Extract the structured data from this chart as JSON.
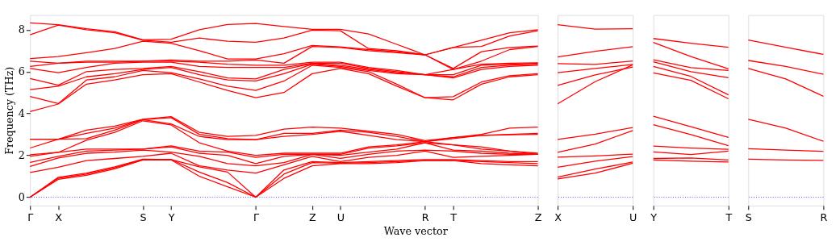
{
  "chart_data": [
    {
      "type": "line",
      "ylabel": "Frequency (THz)",
      "xlabel": "Wave vector",
      "ylim": [
        -0.4,
        8.7
      ],
      "yticks": [
        0,
        2,
        4,
        6,
        8
      ],
      "grid": false,
      "marker": "none",
      "line_style": "solid",
      "categories": [
        "Γ",
        "X",
        null,
        null,
        "S",
        "Y",
        null,
        null,
        "Γ",
        null,
        "Z",
        "U",
        null,
        null,
        "R",
        "T",
        null,
        null,
        "Z"
      ],
      "ref_lines": [
        {
          "axis": "y",
          "value": 0,
          "label": null,
          "color": "#0000ff",
          "line_style": "dotted"
        }
      ],
      "series": [
        {
          "color": "#ff0000",
          "values": [
            0,
            0.85,
            1.05,
            1.35,
            1.78,
            1.78,
            1.0,
            0.5,
            0,
            0.9,
            1.5,
            1.6,
            1.6,
            1.65,
            1.75,
            1.75,
            1.6,
            1.55,
            1.5
          ]
        },
        {
          "color": "#ff0000",
          "values": [
            0,
            0.9,
            1.1,
            1.4,
            1.8,
            1.8,
            1.2,
            0.7,
            0,
            1.1,
            1.65,
            1.62,
            1.65,
            1.7,
            1.75,
            1.75,
            1.7,
            1.65,
            1.6
          ]
        },
        {
          "color": "#ff0000",
          "values": [
            0,
            0.95,
            1.15,
            1.45,
            1.82,
            1.8,
            1.45,
            1.2,
            0,
            1.3,
            1.7,
            1.65,
            1.7,
            1.75,
            1.8,
            1.8,
            1.75,
            1.7,
            1.7
          ]
        },
        {
          "color": "#ff0000",
          "values": [
            1.18,
            1.43,
            1.75,
            1.85,
            1.95,
            2.1,
            1.5,
            1.3,
            1.15,
            1.55,
            1.95,
            1.7,
            1.9,
            2.0,
            2.2,
            1.9,
            1.95,
            2.0,
            2.05
          ]
        },
        {
          "color": "#ff0000",
          "values": [
            1.47,
            1.87,
            2.1,
            2.15,
            2.25,
            2.15,
            1.95,
            1.6,
            1.5,
            1.65,
            2.05,
            1.85,
            2.05,
            2.2,
            2.25,
            2.2,
            2.1,
            2.05,
            2.05
          ]
        },
        {
          "color": "#ff0000",
          "values": [
            1.66,
            1.95,
            2.2,
            2.25,
            2.3,
            2.4,
            2.1,
            2.0,
            1.6,
            1.95,
            2.05,
            2.0,
            2.15,
            2.3,
            2.6,
            2.25,
            2.2,
            2.1,
            2.05
          ]
        },
        {
          "color": "#ff0000",
          "values": [
            1.95,
            2.14,
            2.3,
            2.3,
            2.3,
            2.45,
            2.2,
            2.15,
            1.9,
            2.05,
            2.05,
            2.05,
            2.35,
            2.45,
            2.6,
            2.5,
            2.4,
            2.2,
            2.05
          ]
        },
        {
          "color": "#ff0000",
          "values": [
            2.03,
            2.14,
            2.72,
            3.1,
            3.65,
            3.45,
            2.6,
            2.2,
            2.0,
            2.1,
            2.1,
            2.1,
            2.4,
            2.5,
            2.65,
            2.5,
            2.3,
            2.2,
            2.1
          ]
        },
        {
          "color": "#ff0000",
          "values": [
            2.35,
            2.77,
            2.8,
            3.2,
            3.7,
            3.5,
            2.9,
            2.75,
            2.75,
            2.9,
            3.0,
            3.15,
            2.95,
            2.75,
            2.65,
            2.8,
            2.95,
            2.98,
            3.0
          ]
        },
        {
          "color": "#ff0000",
          "values": [
            2.77,
            2.77,
            3.05,
            3.3,
            3.7,
            3.8,
            3.0,
            2.8,
            2.75,
            3.05,
            3.05,
            3.2,
            3.1,
            2.9,
            2.65,
            2.85,
            2.95,
            3.0,
            3.05
          ]
        },
        {
          "color": "#ff0000",
          "values": [
            2.77,
            2.77,
            3.2,
            3.4,
            3.72,
            3.85,
            3.1,
            2.9,
            2.95,
            3.25,
            3.35,
            3.3,
            3.15,
            3.0,
            2.7,
            2.85,
            3.0,
            3.3,
            3.35
          ]
        },
        {
          "color": "#ff0000",
          "values": [
            4.09,
            4.45,
            5.4,
            5.6,
            5.85,
            5.9,
            5.5,
            5.1,
            4.75,
            5.0,
            5.9,
            6.15,
            5.9,
            5.3,
            4.75,
            4.65,
            5.4,
            5.75,
            5.85
          ]
        },
        {
          "color": "#ff0000",
          "values": [
            4.81,
            4.47,
            5.6,
            5.75,
            6.05,
            5.95,
            5.65,
            5.3,
            5.1,
            5.55,
            6.3,
            6.2,
            6.0,
            5.4,
            4.75,
            4.8,
            5.5,
            5.8,
            5.9
          ]
        },
        {
          "color": "#ff0000",
          "values": [
            5.14,
            5.3,
            5.75,
            5.9,
            6.1,
            6.2,
            5.85,
            5.6,
            5.55,
            5.9,
            6.35,
            6.25,
            6.05,
            5.9,
            5.85,
            5.7,
            6.1,
            6.25,
            6.3
          ]
        },
        {
          "color": "#ff0000",
          "values": [
            5.67,
            5.35,
            6.0,
            6.1,
            6.15,
            6.25,
            6.0,
            5.7,
            5.65,
            6.1,
            6.38,
            6.3,
            6.1,
            5.95,
            5.85,
            5.75,
            6.2,
            6.3,
            6.35
          ]
        },
        {
          "color": "#ff0000",
          "values": [
            6.15,
            5.95,
            6.2,
            6.4,
            6.45,
            6.45,
            6.25,
            6.2,
            6.2,
            6.2,
            6.4,
            6.4,
            6.15,
            6.0,
            5.85,
            5.85,
            6.3,
            6.35,
            6.4
          ]
        },
        {
          "color": "#ff0000",
          "values": [
            6.25,
            6.4,
            6.45,
            6.45,
            6.5,
            6.5,
            6.45,
            6.35,
            6.3,
            6.3,
            6.45,
            6.45,
            6.2,
            6.05,
            5.85,
            6.1,
            6.35,
            6.4,
            6.42
          ]
        },
        {
          "color": "#ff0000",
          "values": [
            6.5,
            6.4,
            6.5,
            6.5,
            6.5,
            6.55,
            6.5,
            6.5,
            6.55,
            6.4,
            7.2,
            7.15,
            7.0,
            6.9,
            6.8,
            6.1,
            6.5,
            7.05,
            7.2
          ]
        },
        {
          "color": "#ff0000",
          "values": [
            6.62,
            6.72,
            6.9,
            7.1,
            7.45,
            7.35,
            7.0,
            6.6,
            6.6,
            6.85,
            7.25,
            7.18,
            7.05,
            6.95,
            6.8,
            6.15,
            6.95,
            7.15,
            7.22
          ]
        },
        {
          "color": "#ff0000",
          "values": [
            7.76,
            8.22,
            8.0,
            7.85,
            7.5,
            7.4,
            7.6,
            7.45,
            7.4,
            7.6,
            7.98,
            7.95,
            7.1,
            7.0,
            6.8,
            7.15,
            7.2,
            7.7,
            7.95
          ]
        },
        {
          "color": "#ff0000",
          "values": [
            8.33,
            8.24,
            8.05,
            7.9,
            7.52,
            7.55,
            8.0,
            8.25,
            8.3,
            8.15,
            8.02,
            8.02,
            7.8,
            7.3,
            6.8,
            7.15,
            7.5,
            7.85,
            8.0
          ]
        }
      ]
    },
    {
      "type": "line",
      "ylim": [
        -0.4,
        8.7
      ],
      "yticks": [
        0,
        2,
        4,
        6,
        8
      ],
      "tick_labels": "x",
      "grid": false,
      "marker": "none",
      "line_style": "solid",
      "categories": [
        "X",
        null,
        "U"
      ],
      "ref_lines": [
        {
          "axis": "y",
          "value": 0,
          "label": null,
          "color": "#0000ff",
          "line_style": "dotted"
        }
      ],
      "series": [
        {
          "color": "#ff0000",
          "values": [
            8.24,
            8.03,
            8.05
          ]
        },
        {
          "color": "#ff0000",
          "values": [
            6.7,
            6.97,
            7.19
          ]
        },
        {
          "color": "#ff0000",
          "values": [
            6.38,
            6.34,
            6.51
          ]
        },
        {
          "color": "#ff0000",
          "values": [
            5.95,
            6.15,
            6.34
          ]
        },
        {
          "color": "#ff0000",
          "values": [
            5.34,
            5.84,
            6.22
          ]
        },
        {
          "color": "#ff0000",
          "values": [
            4.46,
            5.52,
            6.32
          ]
        },
        {
          "color": "#ff0000",
          "values": [
            2.76,
            3.01,
            3.33
          ]
        },
        {
          "color": "#ff0000",
          "values": [
            2.14,
            2.54,
            3.18
          ]
        },
        {
          "color": "#ff0000",
          "values": [
            1.91,
            1.97,
            2.06
          ]
        },
        {
          "color": "#ff0000",
          "values": [
            1.43,
            1.72,
            1.94
          ]
        },
        {
          "color": "#ff0000",
          "values": [
            0.96,
            1.34,
            1.68
          ]
        },
        {
          "color": "#ff0000",
          "values": [
            0.87,
            1.15,
            1.62
          ]
        }
      ]
    },
    {
      "type": "line",
      "ylim": [
        -0.4,
        8.7
      ],
      "yticks": [
        0,
        2,
        4,
        6,
        8
      ],
      "tick_labels": "x",
      "grid": false,
      "marker": "none",
      "line_style": "solid",
      "categories": [
        "Y",
        null,
        "T"
      ],
      "ref_lines": [
        {
          "axis": "y",
          "value": 0,
          "label": null,
          "color": "#0000ff",
          "line_style": "dotted"
        }
      ],
      "series": [
        {
          "color": "#ff0000",
          "values": [
            7.58,
            7.35,
            7.16
          ]
        },
        {
          "color": "#ff0000",
          "values": [
            7.39,
            6.72,
            6.13
          ]
        },
        {
          "color": "#ff0000",
          "values": [
            6.56,
            6.19,
            6.05
          ]
        },
        {
          "color": "#ff0000",
          "values": [
            6.47,
            6.0,
            5.71
          ]
        },
        {
          "color": "#ff0000",
          "values": [
            6.25,
            5.77,
            4.89
          ]
        },
        {
          "color": "#ff0000",
          "values": [
            5.94,
            5.58,
            4.7
          ]
        },
        {
          "color": "#ff0000",
          "values": [
            3.87,
            3.37,
            2.86
          ]
        },
        {
          "color": "#ff0000",
          "values": [
            3.46,
            2.99,
            2.46
          ]
        },
        {
          "color": "#ff0000",
          "values": [
            2.44,
            2.35,
            2.29
          ]
        },
        {
          "color": "#ff0000",
          "values": [
            2.16,
            2.04,
            2.2
          ]
        },
        {
          "color": "#ff0000",
          "values": [
            1.85,
            1.87,
            1.78
          ]
        },
        {
          "color": "#ff0000",
          "values": [
            1.78,
            1.72,
            1.68
          ]
        }
      ]
    },
    {
      "type": "line",
      "ylim": [
        -0.4,
        8.7
      ],
      "yticks": [
        0,
        2,
        4,
        6,
        8
      ],
      "tick_labels": "x",
      "grid": false,
      "marker": "none",
      "line_style": "solid",
      "categories": [
        "S",
        null,
        "R"
      ],
      "ref_lines": [
        {
          "axis": "y",
          "value": 0,
          "label": null,
          "color": "#0000ff",
          "line_style": "dotted"
        }
      ],
      "series": [
        {
          "color": "#ff0000",
          "values": [
            7.51,
            7.16,
            6.82
          ]
        },
        {
          "color": "#ff0000",
          "values": [
            6.53,
            6.25,
            5.87
          ]
        },
        {
          "color": "#ff0000",
          "values": [
            6.15,
            5.65,
            4.82
          ]
        },
        {
          "color": "#ff0000",
          "values": [
            3.72,
            3.3,
            2.67
          ]
        },
        {
          "color": "#ff0000",
          "values": [
            2.32,
            2.25,
            2.19
          ]
        },
        {
          "color": "#ff0000",
          "values": [
            1.82,
            1.78,
            1.76
          ]
        }
      ]
    }
  ]
}
